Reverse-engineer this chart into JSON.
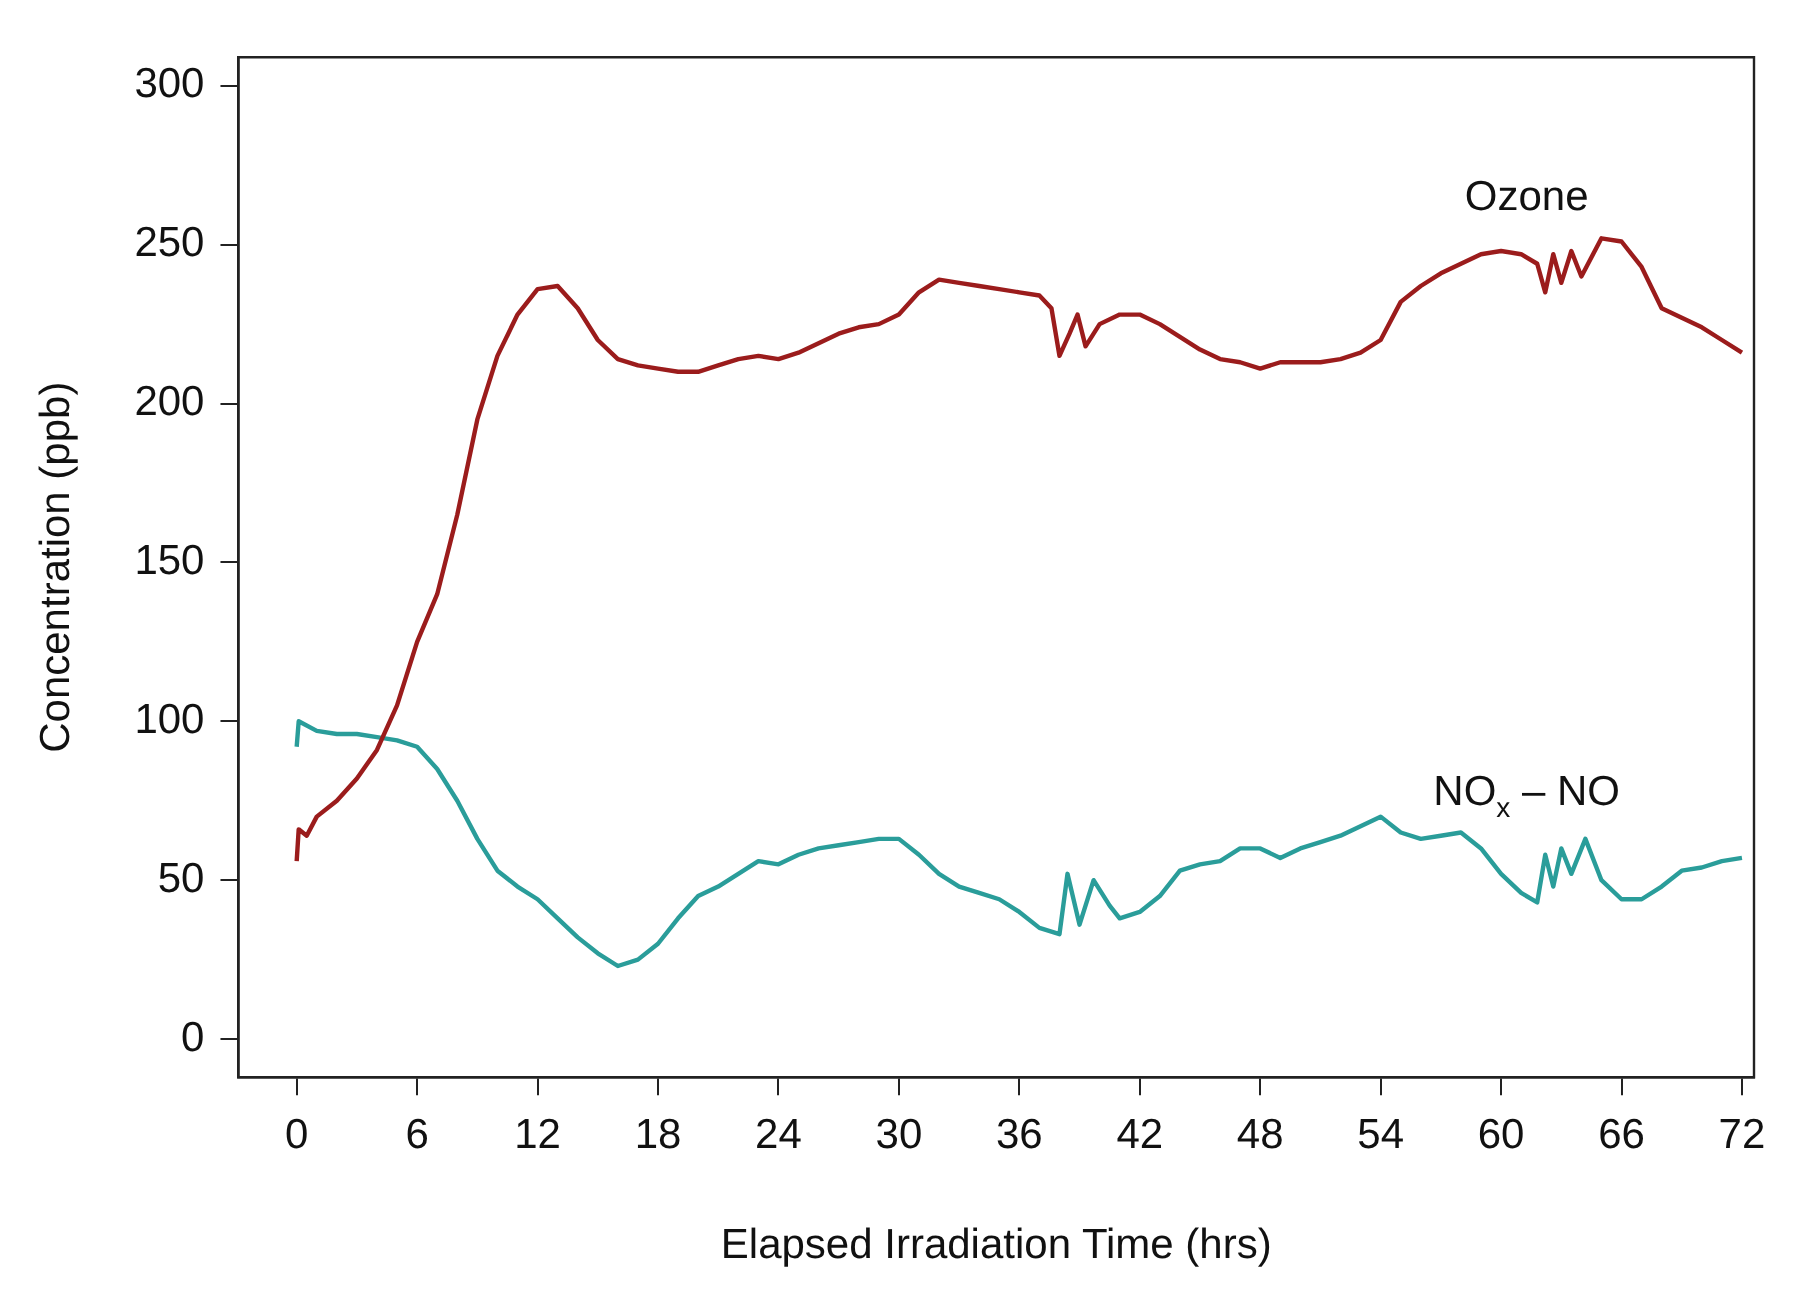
{
  "chart_data": {
    "type": "line",
    "xlabel": "Elapsed Irradiation Time (hrs)",
    "ylabel": "Concentration (ppb)",
    "xlim": [
      -2.9,
      72.6
    ],
    "xticks": [
      0,
      6,
      12,
      18,
      24,
      30,
      36,
      42,
      48,
      54,
      60,
      66,
      72
    ],
    "ylim": [
      -12,
      309
    ],
    "yticks": [
      0,
      50,
      100,
      150,
      200,
      250,
      300
    ],
    "grid": false,
    "legend": false,
    "marker": "none",
    "line_style": "solid",
    "series": [
      {
        "name": "Ozone",
        "color": "#9b1c1c",
        "x": [
          0,
          0.1,
          0.5,
          1,
          2,
          3,
          4,
          5,
          6,
          7,
          8,
          9,
          10,
          11,
          12,
          13,
          14,
          15,
          16,
          17,
          18,
          19,
          20,
          21,
          22,
          23,
          24,
          25,
          26,
          27,
          28,
          29,
          30,
          31,
          32,
          33,
          34,
          35,
          36,
          37,
          37.6,
          38,
          38.5,
          38.9,
          39.3,
          40,
          41,
          42,
          43,
          44,
          45,
          46,
          47,
          48,
          49,
          50,
          51,
          52,
          53,
          54,
          55,
          56,
          57,
          58,
          59,
          60,
          61,
          61.8,
          62.2,
          62.6,
          63,
          63.5,
          64,
          65,
          66,
          67,
          68,
          69,
          70,
          71,
          72
        ],
        "values": [
          56,
          66,
          64,
          70,
          75,
          82,
          91,
          105,
          125,
          140,
          165,
          195,
          215,
          228,
          236,
          237,
          230,
          220,
          214,
          212,
          211,
          210,
          210,
          212,
          214,
          215,
          214,
          216,
          219,
          222,
          224,
          225,
          228,
          235,
          239,
          238,
          237,
          236,
          235,
          234,
          230,
          215,
          222,
          228,
          218,
          225,
          228,
          228,
          225,
          221,
          217,
          214,
          213,
          211,
          213,
          213,
          213,
          214,
          216,
          220,
          232,
          237,
          241,
          244,
          247,
          248,
          247,
          244,
          235,
          247,
          238,
          248,
          240,
          252,
          251,
          243,
          230,
          227,
          224,
          220,
          216
        ]
      },
      {
        "name": "NO$_{x}$ – NO",
        "color": "#2a9d9a",
        "x": [
          0,
          0.1,
          1,
          2,
          3,
          4,
          5,
          6,
          7,
          8,
          9,
          10,
          11,
          12,
          13,
          14,
          15,
          16,
          17,
          18,
          19,
          20,
          21,
          22,
          23,
          24,
          25,
          26,
          27,
          28,
          29,
          30,
          31,
          32,
          33,
          34,
          35,
          36,
          37,
          38,
          38.4,
          39,
          39.7,
          40.5,
          41,
          42,
          43,
          44,
          45,
          46,
          47,
          48,
          49,
          50,
          51,
          52,
          53,
          54,
          55,
          56,
          57,
          58,
          59,
          60,
          61,
          61.8,
          62.2,
          62.6,
          63,
          63.5,
          64.2,
          65,
          66,
          67,
          68,
          69,
          70,
          71,
          72
        ],
        "values": [
          92,
          100,
          97,
          96,
          96,
          95,
          94,
          92,
          85,
          75,
          63,
          53,
          48,
          44,
          38,
          32,
          27,
          23,
          25,
          30,
          38,
          45,
          48,
          52,
          56,
          55,
          58,
          60,
          61,
          62,
          63,
          63,
          58,
          52,
          48,
          46,
          44,
          40,
          35,
          33,
          52,
          36,
          50,
          42,
          38,
          40,
          45,
          53,
          55,
          56,
          60,
          60,
          57,
          60,
          62,
          64,
          67,
          70,
          65,
          63,
          64,
          65,
          60,
          52,
          46,
          43,
          58,
          48,
          60,
          52,
          63,
          50,
          44,
          44,
          48,
          53,
          54,
          56,
          57
        ]
      }
    ]
  }
}
